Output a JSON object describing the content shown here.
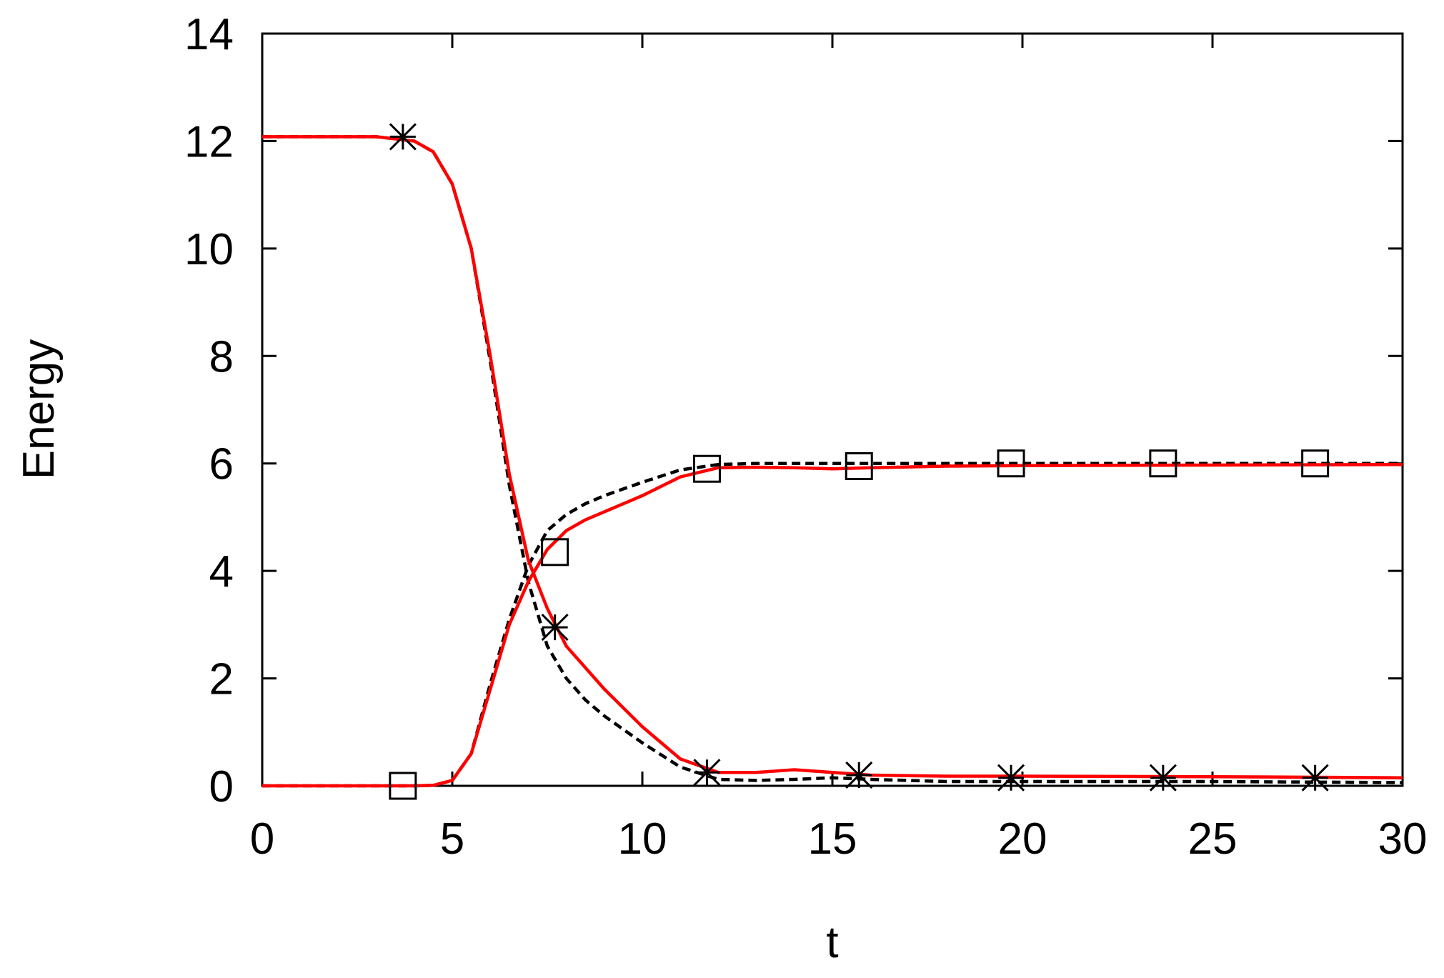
{
  "chart_data": {
    "type": "line",
    "xlabel": "t",
    "ylabel": "Energy",
    "xlim": [
      0,
      30
    ],
    "xticks": [
      0,
      5,
      10,
      15,
      20,
      25,
      30
    ],
    "ylim": [
      0,
      14
    ],
    "yticks": [
      0,
      2,
      4,
      6,
      8,
      10,
      12,
      14
    ],
    "x": [
      0,
      2,
      3,
      4,
      4.5,
      5,
      5.5,
      6,
      6.5,
      7,
      7.5,
      8,
      8.5,
      9,
      10,
      11,
      12,
      13,
      14,
      15,
      16,
      18,
      20,
      25,
      30
    ],
    "series": [
      {
        "color": "#000000",
        "dash": true,
        "values": [
          12.08,
          12.08,
          12.08,
          12.0,
          11.8,
          11.2,
          10.0,
          7.9,
          5.6,
          3.8,
          2.6,
          2.0,
          1.6,
          1.3,
          0.8,
          0.35,
          0.12,
          0.1,
          0.12,
          0.15,
          0.12,
          0.08,
          0.08,
          0.08,
          0.06
        ]
      },
      {
        "color": "#000000",
        "dash": true,
        "values": [
          0,
          0,
          0,
          0,
          0.01,
          0.1,
          0.6,
          1.9,
          3.1,
          4.1,
          4.75,
          5.05,
          5.25,
          5.4,
          5.65,
          5.88,
          5.98,
          6.0,
          6.0,
          6.0,
          6.0,
          6.0,
          6.0,
          6.0,
          6.0
        ]
      },
      {
        "color": "#ff0000",
        "dash": false,
        "values": [
          12.08,
          12.08,
          12.08,
          12.0,
          11.8,
          11.2,
          10.0,
          8.0,
          5.8,
          4.2,
          3.3,
          2.6,
          2.2,
          1.8,
          1.1,
          0.5,
          0.25,
          0.25,
          0.3,
          0.25,
          0.2,
          0.18,
          0.18,
          0.17,
          0.15
        ]
      },
      {
        "color": "#ff0000",
        "dash": false,
        "values": [
          0,
          0,
          0,
          0,
          0.01,
          0.1,
          0.6,
          1.8,
          3.0,
          3.8,
          4.4,
          4.75,
          4.95,
          5.1,
          5.4,
          5.75,
          5.92,
          5.93,
          5.92,
          5.9,
          5.92,
          5.95,
          5.96,
          5.97,
          5.98
        ]
      },
      {
        "color": "#000000",
        "marker": "star",
        "x": [
          3.7,
          7.7,
          11.7,
          15.7,
          19.7,
          23.7,
          27.7
        ],
        "values": [
          12.08,
          2.95,
          0.25,
          0.2,
          0.15,
          0.15,
          0.15
        ]
      },
      {
        "color": "#000000",
        "marker": "square",
        "x": [
          3.7,
          7.7,
          11.7,
          15.7,
          19.7,
          23.7,
          27.7
        ],
        "values": [
          0,
          4.35,
          5.9,
          5.95,
          6.0,
          6.0,
          6.0
        ]
      }
    ]
  }
}
